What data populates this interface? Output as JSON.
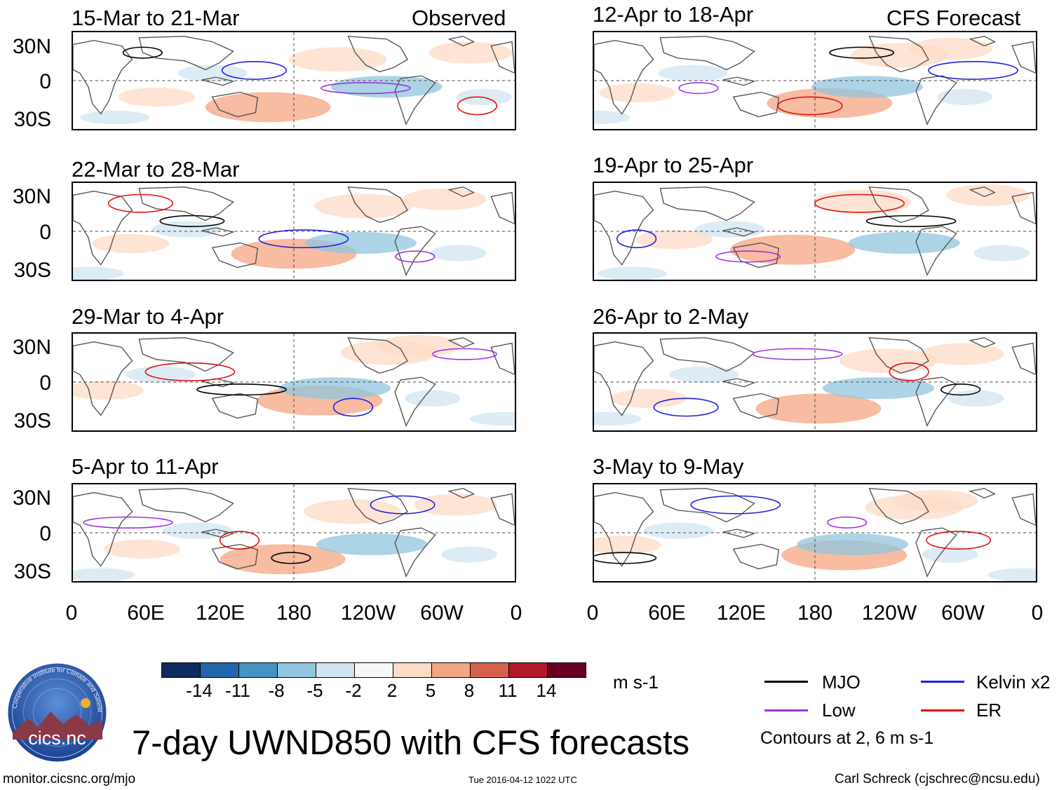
{
  "headers": {
    "left": "Observed",
    "right": "CFS Forecast"
  },
  "panels": [
    {
      "title": "15-Mar to 21-Mar",
      "column": "observed",
      "row": 1
    },
    {
      "title": "22-Mar to 28-Mar",
      "column": "observed",
      "row": 2
    },
    {
      "title": "29-Mar to 4-Apr",
      "column": "observed",
      "row": 3
    },
    {
      "title": "5-Apr to 11-Apr",
      "column": "observed",
      "row": 4
    },
    {
      "title": "12-Apr to 18-Apr",
      "column": "forecast",
      "row": 1
    },
    {
      "title": "19-Apr to 25-Apr",
      "column": "forecast",
      "row": 2
    },
    {
      "title": "26-Apr to 2-May",
      "column": "forecast",
      "row": 3
    },
    {
      "title": "3-May to 9-May",
      "column": "forecast",
      "row": 4
    }
  ],
  "latitude_labels": [
    "30N",
    "0",
    "30S"
  ],
  "longitude_labels": [
    "0",
    "60E",
    "120E",
    "180",
    "120W",
    "60W",
    "0"
  ],
  "colorbar": {
    "ticks": [
      "-14",
      "-11",
      "-8",
      "-5",
      "-2",
      "2",
      "5",
      "8",
      "11",
      "14"
    ],
    "colors": [
      "#0d2b5e",
      "#2166ac",
      "#4393c3",
      "#92c5de",
      "#d1e5f0",
      "#f7f7f7",
      "#fddbc7",
      "#f4a582",
      "#d6604d",
      "#b2182b",
      "#67001f"
    ],
    "unit": "m s-1"
  },
  "legend": {
    "items": [
      {
        "label": "MJO",
        "color": "#000000"
      },
      {
        "label": "Kelvin x2",
        "color": "#1f1fdd"
      },
      {
        "label": "Low",
        "color": "#a030e8"
      },
      {
        "label": "ER",
        "color": "#e01010"
      }
    ],
    "note": "Contours at 2, 6 m s-1"
  },
  "main_title": "7-day UWND850 with CFS forecasts",
  "logo_text": "cics.nc",
  "logo_ring_text": "Cooperative Institute for Climate and Satellites",
  "footer": {
    "url": "monitor.cicsnc.org/mjo",
    "timestamp": "Tue 2016-04-12 1022 UTC",
    "author": "Carl Schreck (cjschrec@ncsu.edu)"
  }
}
